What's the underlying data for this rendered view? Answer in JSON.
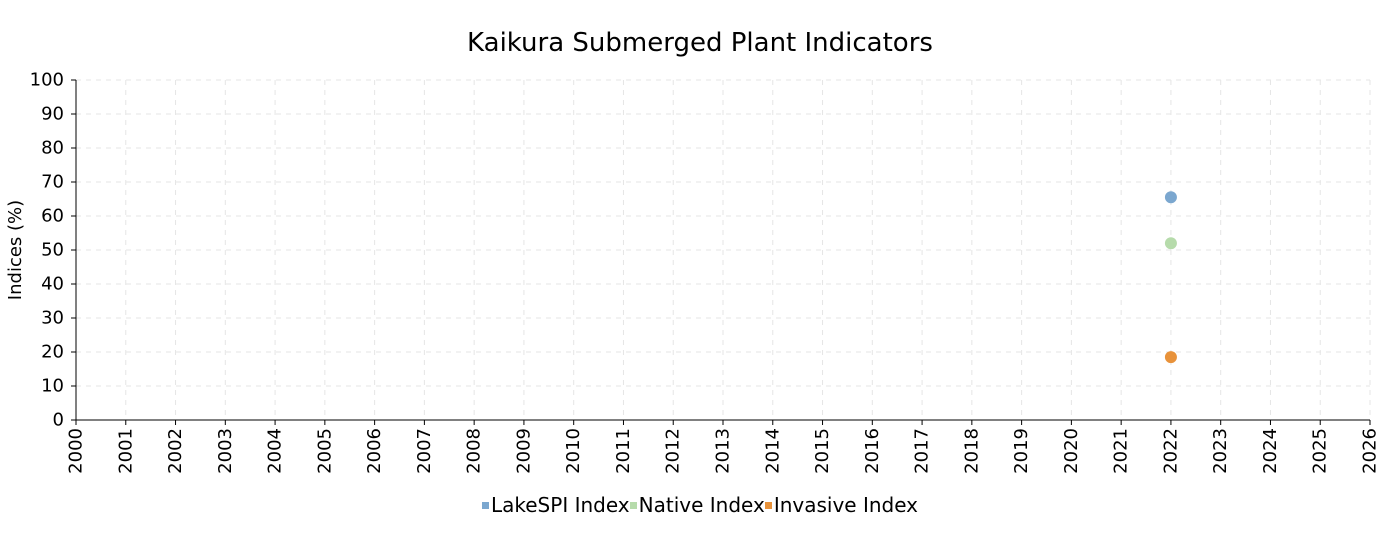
{
  "chart_data": {
    "type": "scatter",
    "title": "Kaikura Submerged Plant Indicators",
    "xlabel": "",
    "ylabel": "Indices (%)",
    "xlim": [
      2000,
      2026
    ],
    "ylim": [
      0,
      100
    ],
    "x_ticks": [
      "2000",
      "2001",
      "2002",
      "2003",
      "2004",
      "2005",
      "2006",
      "2007",
      "2008",
      "2009",
      "2010",
      "2011",
      "2012",
      "2013",
      "2014",
      "2015",
      "2016",
      "2017",
      "2018",
      "2019",
      "2020",
      "2021",
      "2022",
      "2023",
      "2024",
      "2025",
      "2026"
    ],
    "y_ticks": [
      "0",
      "10",
      "20",
      "30",
      "40",
      "50",
      "60",
      "70",
      "80",
      "90",
      "100"
    ],
    "grid": true,
    "legend_position": "bottom",
    "series": [
      {
        "name": "LakeSPI Index",
        "color": "#7BA7CF",
        "points": [
          {
            "x": 2022,
            "y": 65.5
          }
        ]
      },
      {
        "name": "Native Index",
        "color": "#B6DBAB",
        "points": [
          {
            "x": 2022,
            "y": 52
          }
        ]
      },
      {
        "name": "Invasive Index",
        "color": "#E8923A",
        "points": [
          {
            "x": 2022,
            "y": 18.5
          }
        ]
      }
    ]
  }
}
